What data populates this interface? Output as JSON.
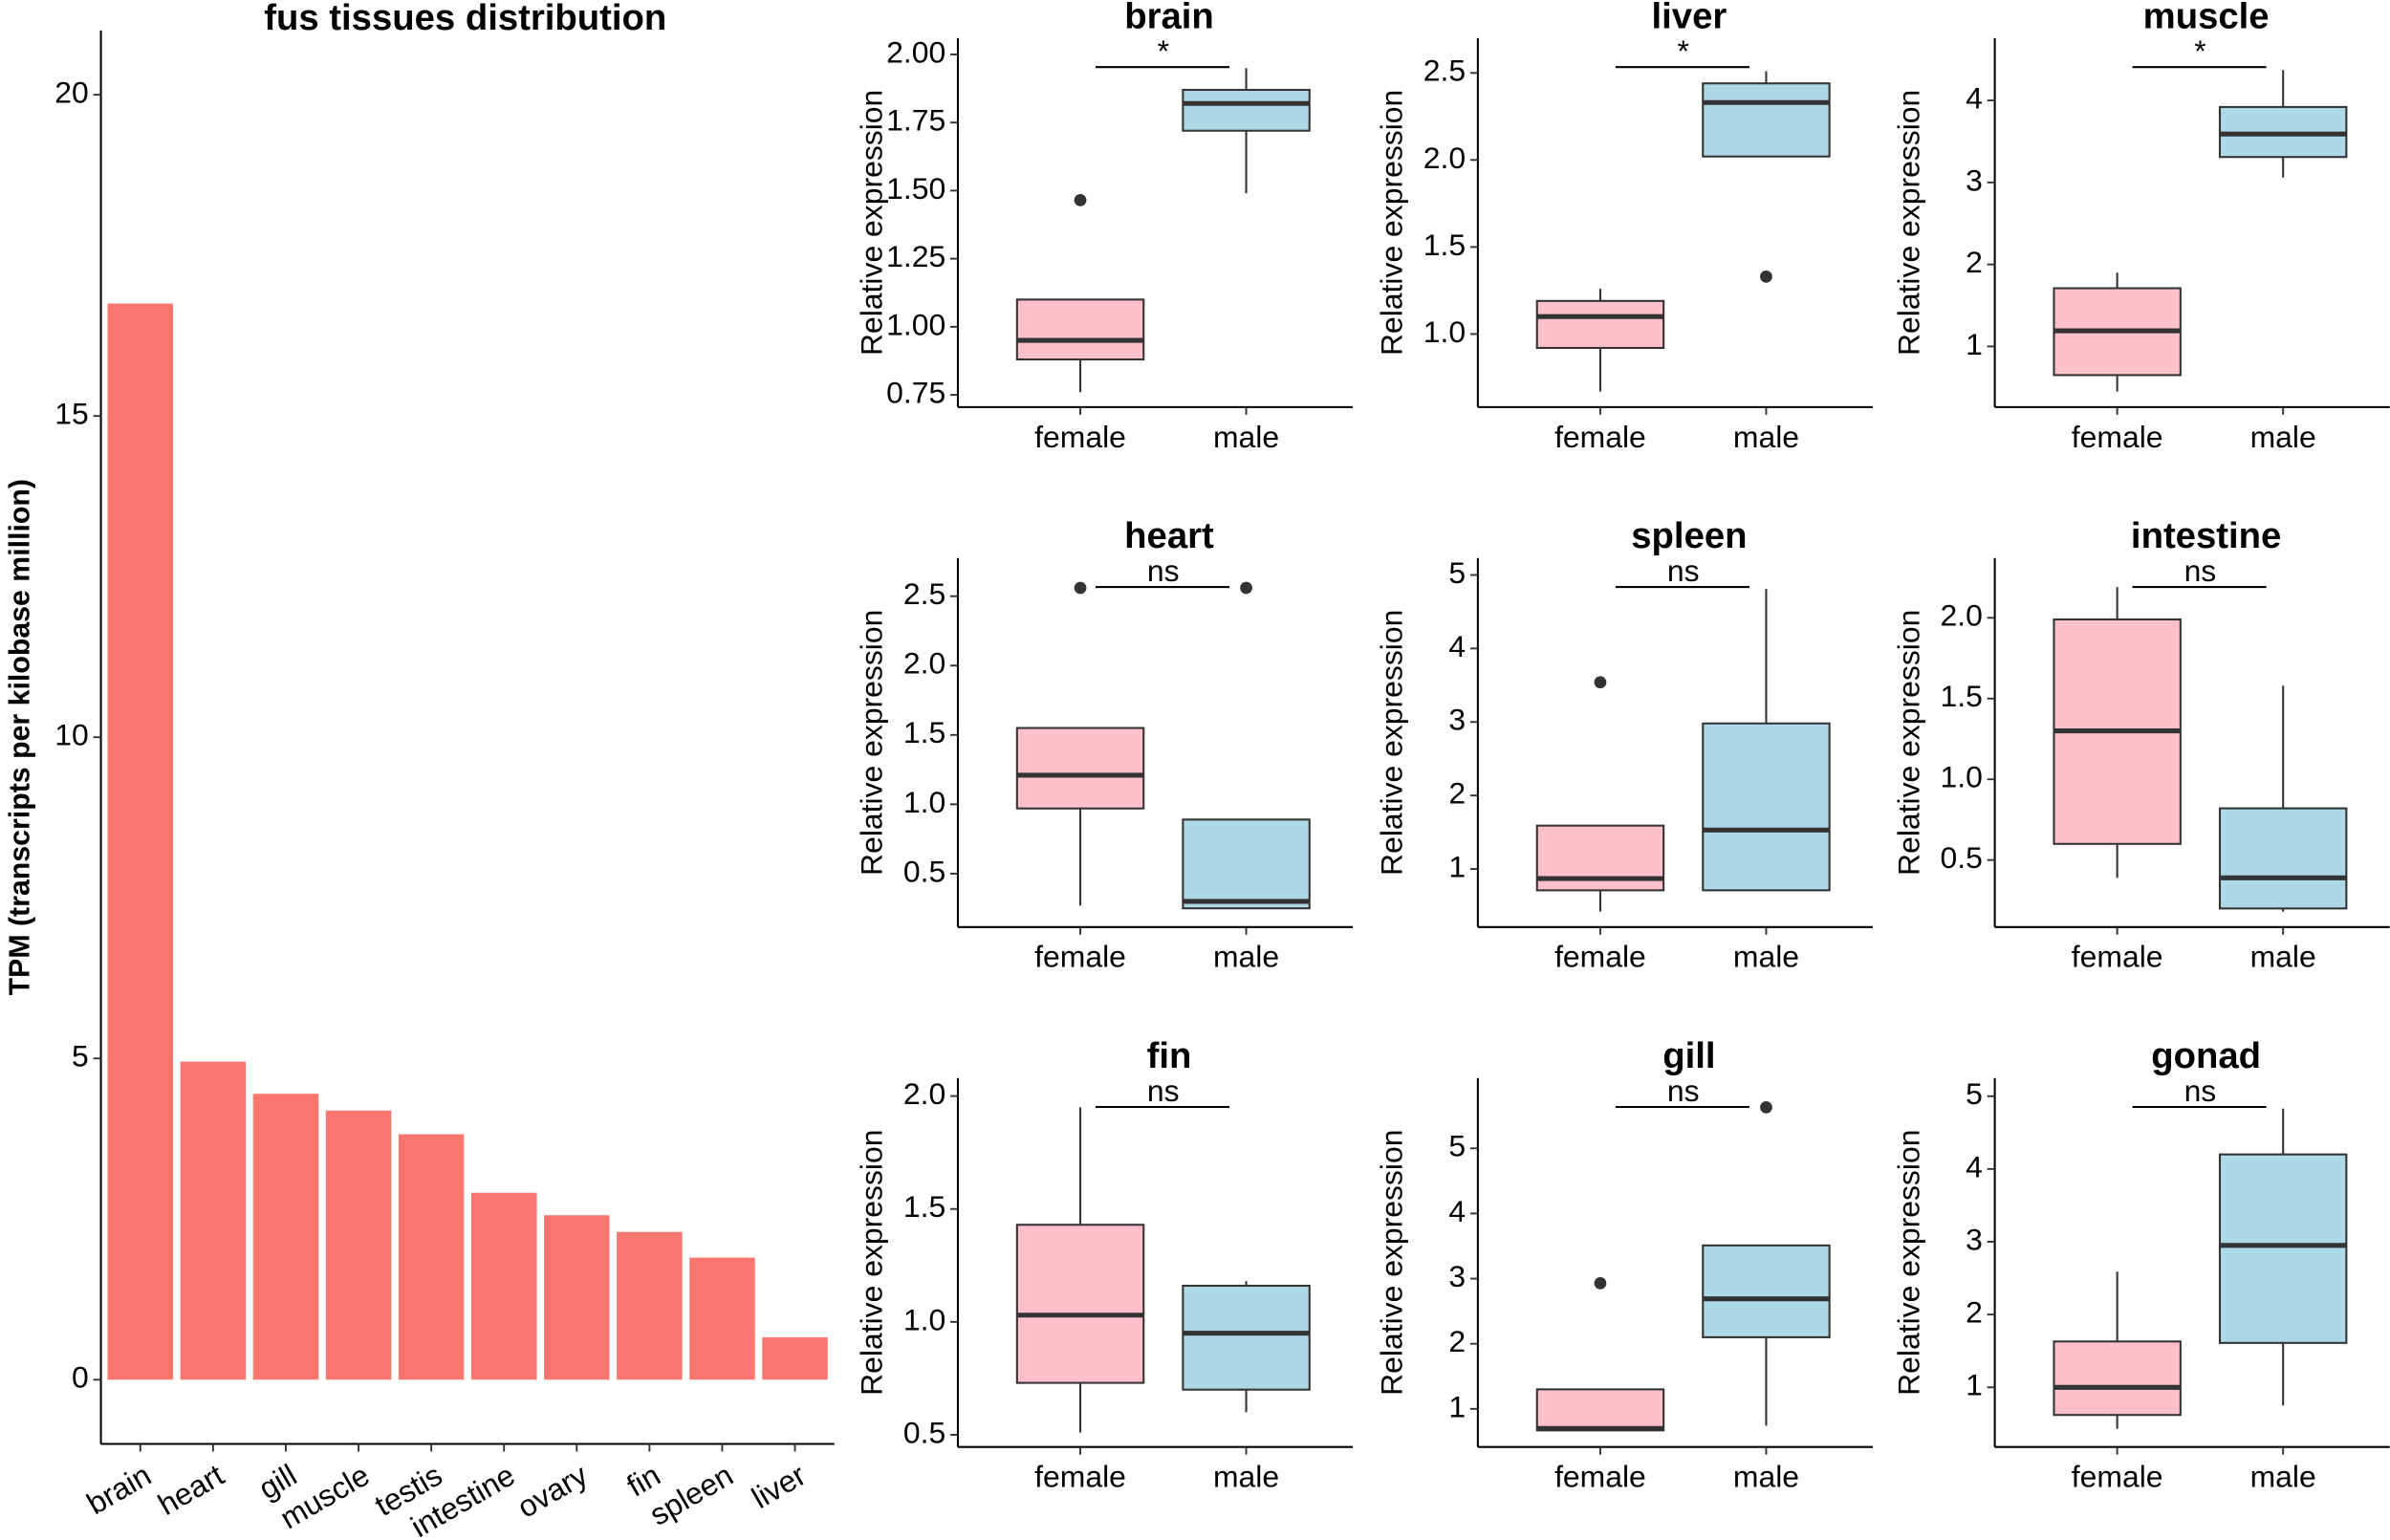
{
  "chart_data": [
    {
      "type": "bar",
      "title": "fus tissues distribution",
      "y_label": "TPM (transcripts per kilobase million)",
      "categories": [
        "brain",
        "heart",
        "gill",
        "muscle",
        "testis",
        "intestine",
        "ovary",
        "fin",
        "spleen",
        "liver"
      ],
      "values": [
        16.75,
        4.95,
        4.45,
        4.19,
        3.82,
        2.91,
        2.56,
        2.3,
        1.9,
        0.66
      ],
      "color": "#f8766d",
      "ylim": [
        -1,
        21
      ],
      "yticks": [
        0,
        5,
        10,
        15,
        20
      ]
    },
    {
      "type": "box",
      "title": "brain",
      "y_label": "Relative expression",
      "annotation": "*",
      "categories": [
        "female",
        "male"
      ],
      "colors": [
        "#ffc0cb",
        "#add8e6"
      ],
      "boxes": [
        {
          "min": 0.76,
          "q1": 0.88,
          "median": 0.95,
          "q3": 1.1,
          "max": 1.1,
          "outliers": [
            1.465
          ]
        },
        {
          "min": 1.49,
          "q1": 1.72,
          "median": 1.82,
          "q3": 1.87,
          "max": 1.95,
          "outliers": []
        }
      ],
      "ylim": [
        0.705,
        2.06
      ],
      "yticks": [
        0.75,
        {
          "value": 1,
          "label": "1.00"
        },
        1.25,
        {
          "value": 1.5,
          "label": "1.50"
        },
        1.75,
        {
          "value": 2,
          "label": "2.00"
        }
      ]
    },
    {
      "type": "box",
      "title": "liver",
      "y_label": "Relative expression",
      "annotation": "*",
      "categories": [
        "female",
        "male"
      ],
      "colors": [
        "#ffc0cb",
        "#add8e6"
      ],
      "boxes": [
        {
          "min": 0.67,
          "q1": 0.92,
          "median": 1.1,
          "q3": 1.19,
          "max": 1.26,
          "outliers": []
        },
        {
          "min": 2.02,
          "q1": 2.02,
          "median": 2.33,
          "q3": 2.44,
          "max": 2.51,
          "outliers": [
            1.33
          ]
        }
      ],
      "ylim": [
        0.58,
        2.7
      ],
      "yticks": [
        {
          "value": 1,
          "label": "1.0"
        },
        1.5,
        {
          "value": 2,
          "label": "2.0"
        },
        2.5
      ]
    },
    {
      "type": "box",
      "title": "muscle",
      "y_label": "Relative expression",
      "annotation": "*",
      "categories": [
        "female",
        "male"
      ],
      "colors": [
        "#ffc0cb",
        "#add8e6"
      ],
      "boxes": [
        {
          "min": 0.45,
          "q1": 0.65,
          "median": 1.19,
          "q3": 1.71,
          "max": 1.9,
          "outliers": []
        },
        {
          "min": 3.06,
          "q1": 3.31,
          "median": 3.59,
          "q3": 3.92,
          "max": 4.37,
          "outliers": []
        }
      ],
      "ylim": [
        0.26,
        4.76
      ],
      "yticks": [
        1,
        2,
        3,
        4
      ]
    },
    {
      "type": "box",
      "title": "heart",
      "y_label": "Relative expression",
      "annotation": "ns",
      "categories": [
        "female",
        "male"
      ],
      "colors": [
        "#ffc0cb",
        "#add8e6"
      ],
      "boxes": [
        {
          "min": 0.27,
          "q1": 0.97,
          "median": 1.21,
          "q3": 1.55,
          "max": 1.55,
          "outliers": [
            2.56
          ]
        },
        {
          "min": 0.25,
          "q1": 0.25,
          "median": 0.3,
          "q3": 0.89,
          "max": 0.89,
          "outliers": [
            2.56
          ]
        }
      ],
      "ylim": [
        0.115,
        2.775
      ],
      "yticks": [
        0.5,
        {
          "value": 1,
          "label": "1.0"
        },
        1.5,
        {
          "value": 2,
          "label": "2.0"
        },
        2.5
      ]
    },
    {
      "type": "box",
      "title": "spleen",
      "y_label": "Relative expression",
      "annotation": "ns",
      "categories": [
        "female",
        "male"
      ],
      "colors": [
        "#ffc0cb",
        "#add8e6"
      ],
      "boxes": [
        {
          "min": 0.42,
          "q1": 0.71,
          "median": 0.87,
          "q3": 1.59,
          "max": 1.59,
          "outliers": [
            3.54
          ]
        },
        {
          "min": 0.7,
          "q1": 0.71,
          "median": 1.53,
          "q3": 2.98,
          "max": 4.81,
          "outliers": []
        }
      ],
      "ylim": [
        0.21,
        5.23
      ],
      "yticks": [
        1,
        2,
        3,
        4,
        5
      ]
    },
    {
      "type": "box",
      "title": "intestine",
      "y_label": "Relative expression",
      "annotation": "ns",
      "categories": [
        "female",
        "male"
      ],
      "colors": [
        "#ffc0cb",
        "#add8e6"
      ],
      "boxes": [
        {
          "min": 0.39,
          "q1": 0.6,
          "median": 1.3,
          "q3": 1.99,
          "max": 2.19,
          "outliers": []
        },
        {
          "min": 0.18,
          "q1": 0.2,
          "median": 0.39,
          "q3": 0.82,
          "max": 1.58,
          "outliers": []
        }
      ],
      "ylim": [
        0.085,
        2.37
      ],
      "yticks": [
        0.5,
        {
          "value": 1,
          "label": "1.0"
        },
        1.5,
        {
          "value": 2,
          "label": "2.0"
        }
      ]
    },
    {
      "type": "box",
      "title": "fin",
      "y_label": "Relative expression",
      "annotation": "ns",
      "categories": [
        "female",
        "male"
      ],
      "colors": [
        "#ffc0cb",
        "#add8e6"
      ],
      "boxes": [
        {
          "min": 0.51,
          "q1": 0.73,
          "median": 1.03,
          "q3": 1.43,
          "max": 1.95,
          "outliers": []
        },
        {
          "min": 0.6,
          "q1": 0.7,
          "median": 0.95,
          "q3": 1.16,
          "max": 1.18,
          "outliers": []
        }
      ],
      "ylim": [
        0.446,
        2.08
      ],
      "yticks": [
        0.5,
        {
          "value": 1,
          "label": "1.0"
        },
        1.5,
        {
          "value": 2,
          "label": "2.0"
        }
      ]
    },
    {
      "type": "box",
      "title": "gill",
      "y_label": "Relative expression",
      "annotation": "ns",
      "categories": [
        "female",
        "male"
      ],
      "colors": [
        "#ffc0cb",
        "#add8e6"
      ],
      "boxes": [
        {
          "min": 0.67,
          "q1": 0.67,
          "median": 0.7,
          "q3": 1.3,
          "max": 1.3,
          "outliers": [
            2.93
          ]
        },
        {
          "min": 0.74,
          "q1": 2.1,
          "median": 2.69,
          "q3": 3.51,
          "max": 3.51,
          "outliers": [
            5.63
          ]
        }
      ],
      "ylim": [
        0.415,
        6.08
      ],
      "yticks": [
        1,
        2,
        3,
        4,
        5
      ]
    },
    {
      "type": "box",
      "title": "gonad",
      "y_label": "Relative expression",
      "annotation": "ns",
      "categories": [
        "female",
        "male"
      ],
      "colors": [
        "#ffc0cb",
        "#add8e6"
      ],
      "boxes": [
        {
          "min": 0.43,
          "q1": 0.62,
          "median": 1,
          "q3": 1.63,
          "max": 2.59,
          "outliers": []
        },
        {
          "min": 0.75,
          "q1": 1.61,
          "median": 2.95,
          "q3": 4.2,
          "max": 4.83,
          "outliers": []
        }
      ],
      "ylim": [
        0.18,
        5.25
      ],
      "yticks": [
        1,
        2,
        3,
        4,
        5
      ]
    }
  ]
}
